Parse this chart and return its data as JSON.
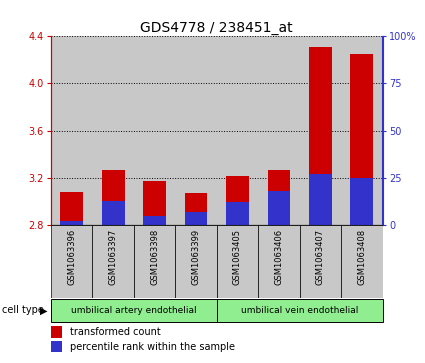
{
  "title": "GDS4778 / 238451_at",
  "samples": [
    "GSM1063396",
    "GSM1063397",
    "GSM1063398",
    "GSM1063399",
    "GSM1063405",
    "GSM1063406",
    "GSM1063407",
    "GSM1063408"
  ],
  "transformed_counts": [
    3.08,
    3.27,
    3.17,
    3.07,
    3.22,
    3.27,
    4.31,
    4.25
  ],
  "percentile_ranks": [
    2,
    13,
    5,
    7,
    12,
    18,
    27,
    25
  ],
  "ylim_left": [
    2.8,
    4.4
  ],
  "yticks_left": [
    2.8,
    3.2,
    3.6,
    4.0,
    4.4
  ],
  "ylim_right": [
    0,
    100
  ],
  "yticks_right": [
    0,
    25,
    50,
    75,
    100
  ],
  "yticklabels_right": [
    "0",
    "25",
    "50",
    "75",
    "100%"
  ],
  "bar_bottom": 2.8,
  "bar_color_red": "#cc0000",
  "bar_color_blue": "#3333cc",
  "bar_width": 0.55,
  "group1_label": "umbilical artery endothelial",
  "group2_label": "umbilical vein endothelial",
  "cell_type_label": "cell type",
  "legend_red_label": "transformed count",
  "legend_blue_label": "percentile rank within the sample",
  "bg_color": "#c8c8c8",
  "group_color": "#90ee90",
  "title_fontsize": 10,
  "tick_fontsize": 7,
  "sample_fontsize": 6
}
